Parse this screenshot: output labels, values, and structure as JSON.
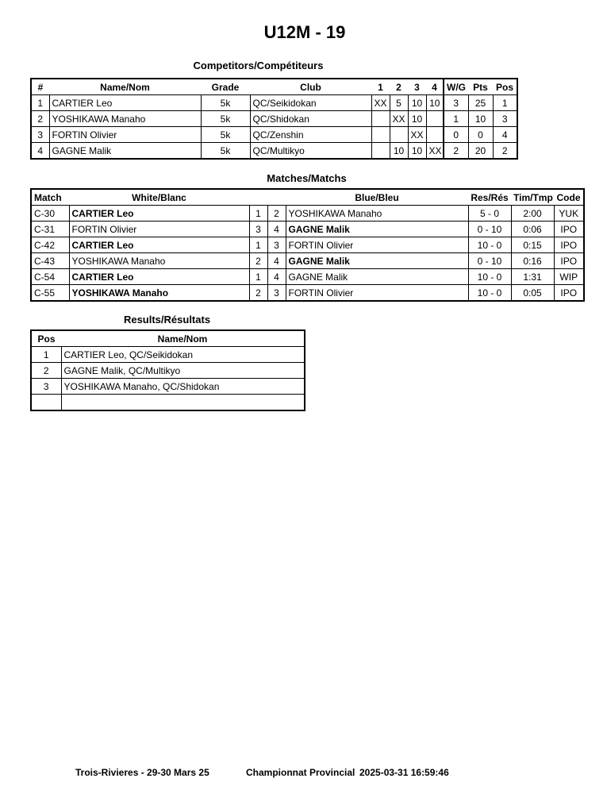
{
  "title": "U12M - 19",
  "competitors": {
    "heading": "Competitors/Compétiteurs",
    "headers": [
      "#",
      "Name/Nom",
      "Grade",
      "Club",
      "1",
      "2",
      "3",
      "4",
      "W/G",
      "Pts",
      "Pos"
    ],
    "rows": [
      [
        "1",
        "CARTIER Leo",
        "5k",
        "QC/Seikidokan",
        "XX",
        "5",
        "10",
        "10",
        "3",
        "25",
        "1"
      ],
      [
        "2",
        "YOSHIKAWA Manaho",
        "5k",
        "QC/Shidokan",
        "",
        "XX",
        "10",
        "",
        "1",
        "10",
        "3"
      ],
      [
        "3",
        "FORTIN Olivier",
        "5k",
        "QC/Zenshin",
        "",
        "",
        "XX",
        "",
        "0",
        "0",
        "4"
      ],
      [
        "4",
        "GAGNE Malik",
        "5k",
        "QC/Multikyo",
        "",
        "10",
        "10",
        "XX",
        "2",
        "20",
        "2"
      ]
    ]
  },
  "matches": {
    "heading": "Matches/Matchs",
    "headers": [
      "Match",
      "White/Blanc",
      "",
      "",
      "Blue/Bleu",
      "Res/Rés",
      "Tim/Tmp",
      "Code"
    ],
    "rows": [
      {
        "match": "C-30",
        "white": "CARTIER Leo",
        "wn": "1",
        "bn": "2",
        "blue": "YOSHIKAWA Manaho",
        "res": "5 - 0",
        "time": "2:00",
        "code": "YUK",
        "winner": "white"
      },
      {
        "match": "C-31",
        "white": "FORTIN Olivier",
        "wn": "3",
        "bn": "4",
        "blue": "GAGNE Malik",
        "res": "0 - 10",
        "time": "0:06",
        "code": "IPO",
        "winner": "blue"
      },
      {
        "match": "C-42",
        "white": "CARTIER Leo",
        "wn": "1",
        "bn": "3",
        "blue": "FORTIN Olivier",
        "res": "10 - 0",
        "time": "0:15",
        "code": "IPO",
        "winner": "white"
      },
      {
        "match": "C-43",
        "white": "YOSHIKAWA Manaho",
        "wn": "2",
        "bn": "4",
        "blue": "GAGNE Malik",
        "res": "0 - 10",
        "time": "0:16",
        "code": "IPO",
        "winner": "blue"
      },
      {
        "match": "C-54",
        "white": "CARTIER Leo",
        "wn": "1",
        "bn": "4",
        "blue": "GAGNE Malik",
        "res": "10 - 0",
        "time": "1:31",
        "code": "WIP",
        "winner": "white"
      },
      {
        "match": "C-55",
        "white": "YOSHIKAWA Manaho",
        "wn": "2",
        "bn": "3",
        "blue": "FORTIN Olivier",
        "res": "10 - 0",
        "time": "0:05",
        "code": "IPO",
        "winner": "white"
      }
    ]
  },
  "results": {
    "heading": "Results/Résultats",
    "headers": [
      "Pos",
      "Name/Nom"
    ],
    "rows": [
      [
        "1",
        "CARTIER Leo, QC/Seikidokan"
      ],
      [
        "2",
        "GAGNE Malik, QC/Multikyo"
      ],
      [
        "3",
        "YOSHIKAWA Manaho, QC/Shidokan"
      ],
      [
        "",
        ""
      ]
    ]
  },
  "footer": {
    "location": "Trois-Rivieres - 29-30 Mars 25",
    "event": "Championnat Provincial",
    "timestamp": "2025-03-31 16:59:46"
  }
}
